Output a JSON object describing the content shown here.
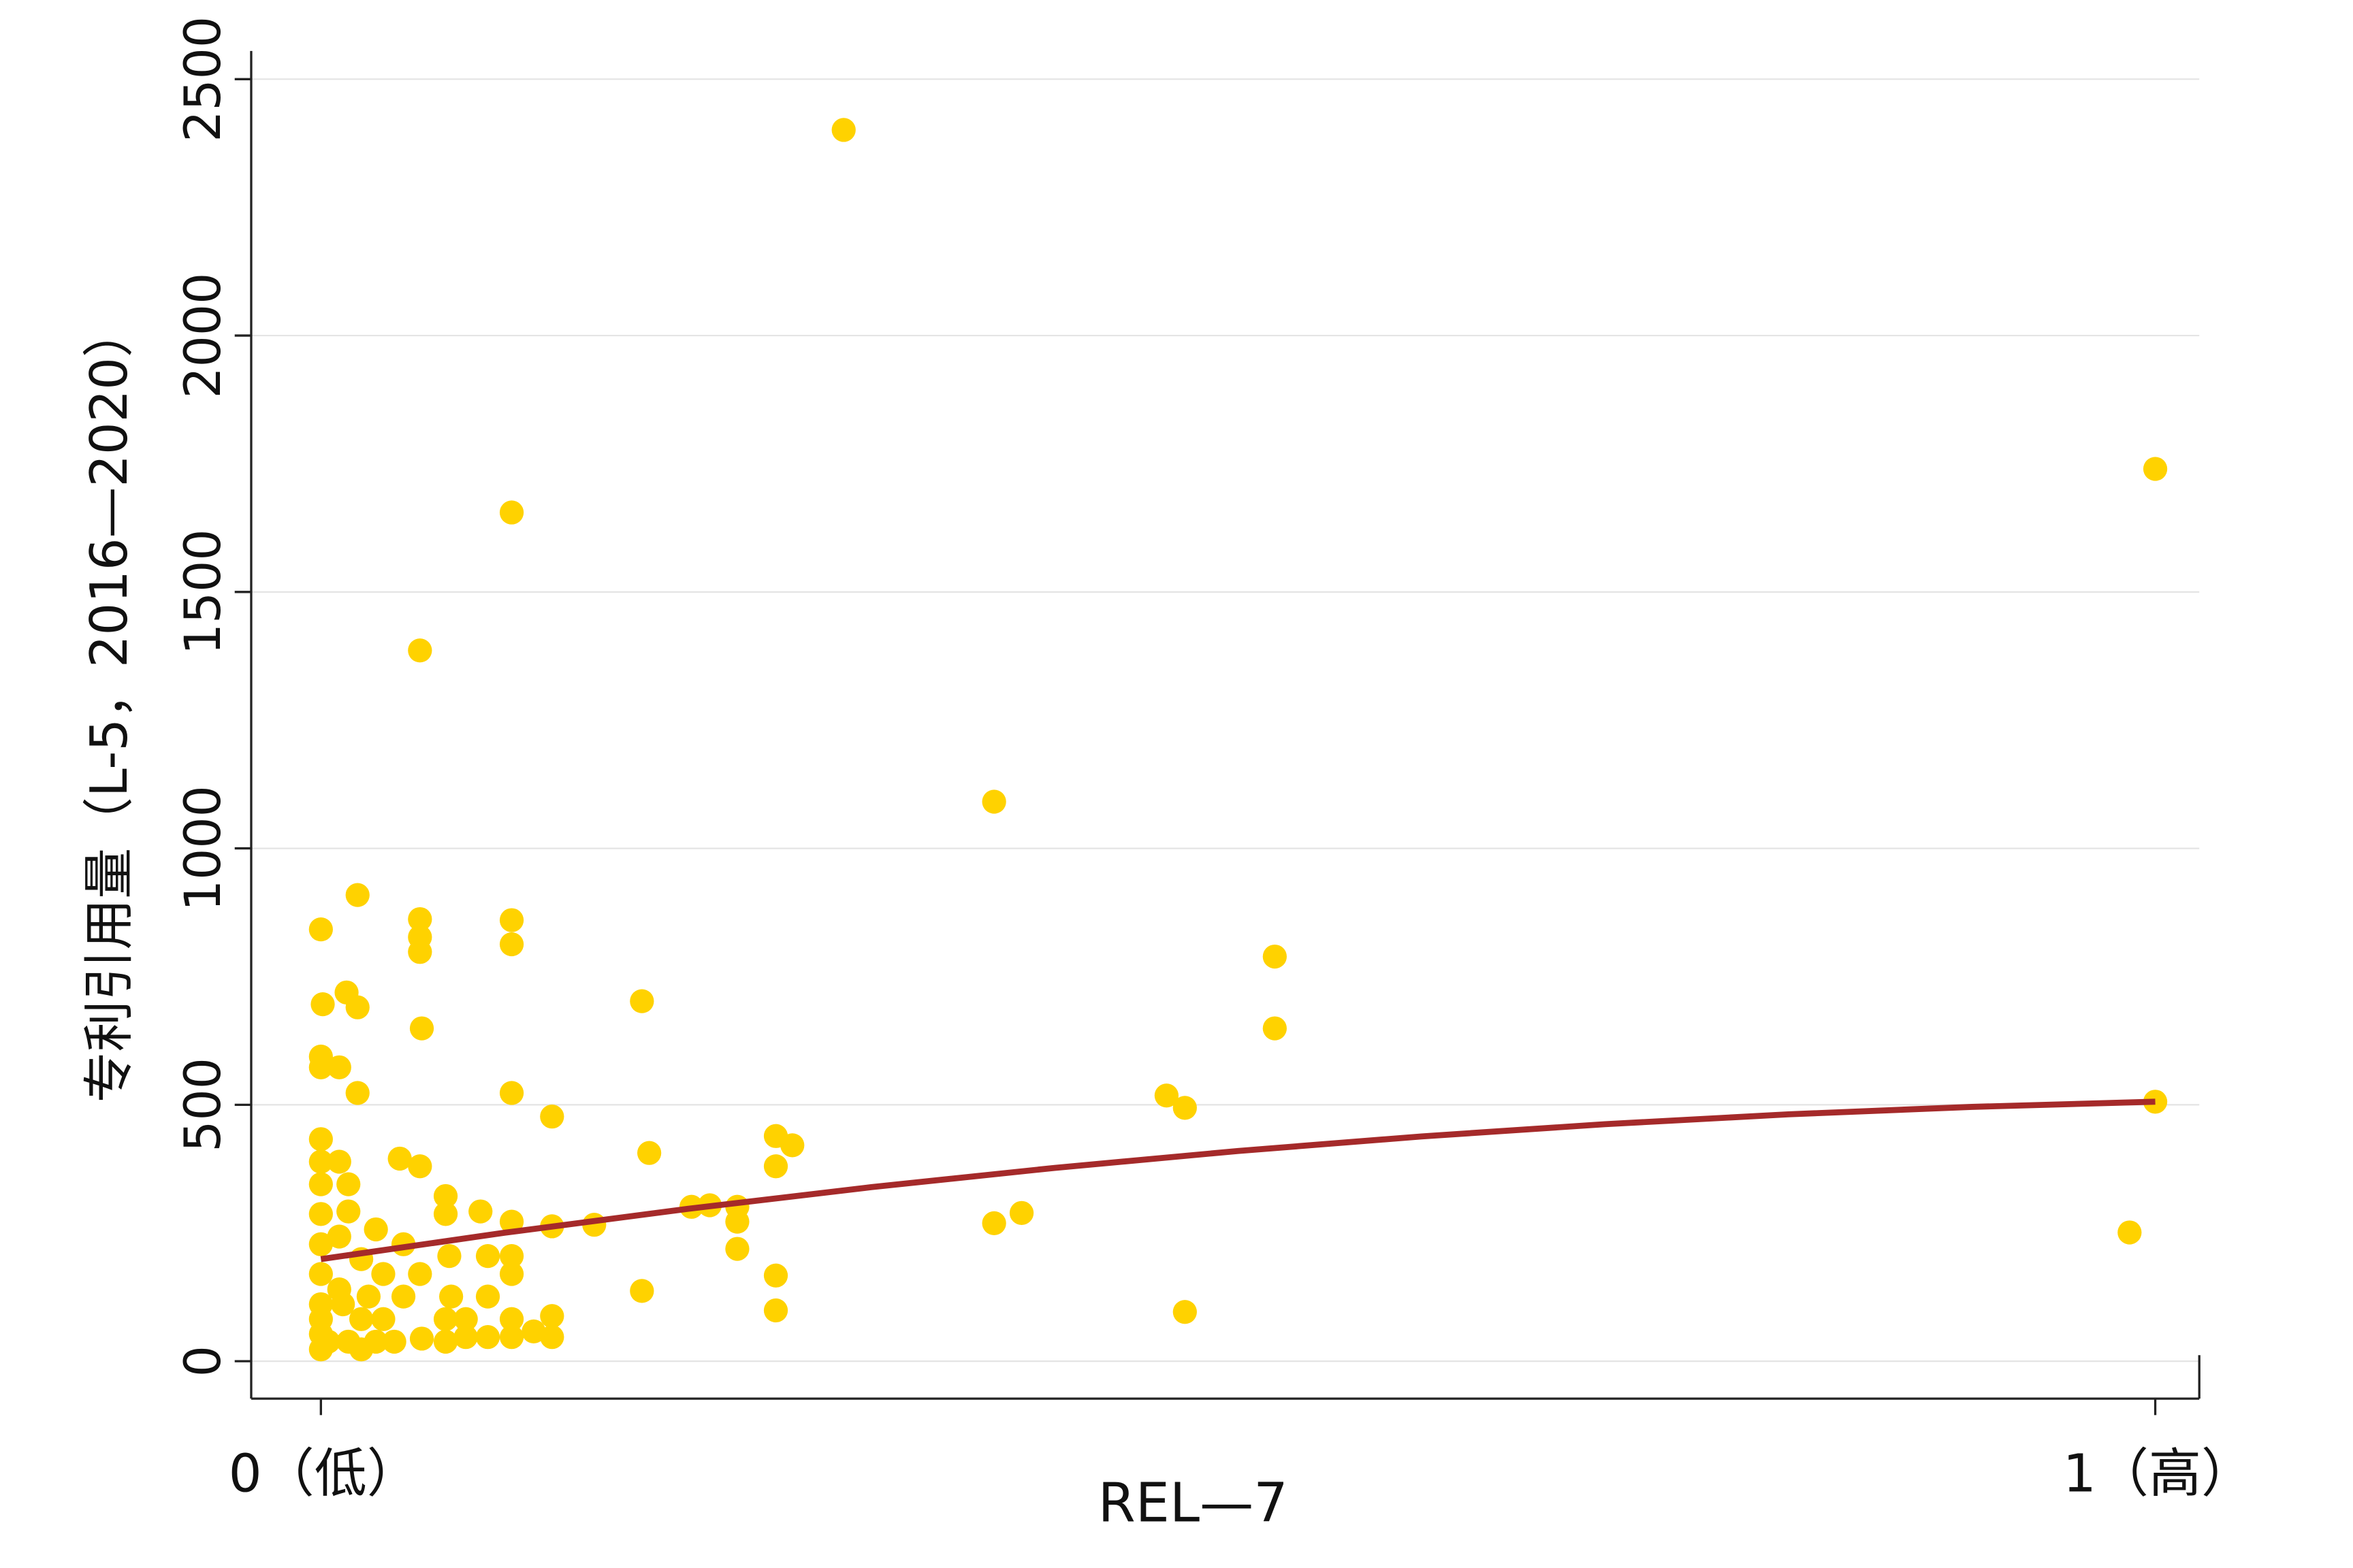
{
  "chart_data": {
    "type": "scatter",
    "xlabel": "REL—7",
    "ylabel": "专利引用量（L-5，2016—2020）",
    "xlim": [
      -0.038,
      1.024
    ],
    "ylim": [
      -73,
      2555
    ],
    "xticks": [
      {
        "value": 0,
        "label": "0（低）"
      },
      {
        "value": 1,
        "label": "1（高）"
      }
    ],
    "yticks": [
      0,
      500,
      1000,
      1500,
      2000,
      2500
    ],
    "grid": true,
    "series": [
      {
        "type": "scatter",
        "color": "#FFD200",
        "x": [
          0.285,
          1.0,
          0.104,
          0.054,
          0.367,
          0.02,
          0,
          0.054,
          0.054,
          0.054,
          0.104,
          0.104,
          0.52,
          0.52,
          0.175,
          0.001,
          0.014,
          0.02,
          0.055,
          0,
          0,
          0.01,
          0.02,
          0.104,
          0.126,
          0.461,
          0.471,
          0.248,
          0.257,
          0.248,
          0.179,
          1.0,
          0.986,
          0.367,
          0.382,
          0.227,
          0.227,
          0.227,
          0.202,
          0.212,
          0.248,
          0.248,
          0.471,
          0.175,
          0.149,
          0.126,
          0,
          0,
          0,
          0,
          0,
          0,
          0,
          0,
          0,
          0.01,
          0.015,
          0.015,
          0.01,
          0.022,
          0.01,
          0.022,
          0.015,
          0.043,
          0.054,
          0.068,
          0.068,
          0.045,
          0.054,
          0.045,
          0.068,
          0.068,
          0.03,
          0.034,
          0.03,
          0.087,
          0.091,
          0.091,
          0.104,
          0.104,
          0.104,
          0.104,
          0.104,
          0.079,
          0.079,
          0.091,
          0.116,
          0.126,
          0.126,
          0.07,
          0.071,
          0,
          0.004,
          0.022,
          0.04,
          0.055,
          0.012,
          0.026,
          0.034
        ],
        "values": [
          2401,
          1740,
          1655,
          1386,
          1091,
          909,
          842,
          862,
          827,
          798,
          860,
          813,
          789,
          649,
          702,
          696,
          719,
          690,
          649,
          594,
          573,
          573,
          523,
          523,
          477,
          518,
          494,
          439,
          421,
          380,
          406,
          506,
          251,
          269,
          289,
          301,
          272,
          219,
          301,
          304,
          167,
          99,
          96,
          137,
          266,
          263,
          433,
          389,
          345,
          287,
          228,
          170,
          111,
          53,
          23,
          389,
          345,
          292,
          243,
          199,
          140,
          82,
          38,
          395,
          380,
          322,
          287,
          228,
          170,
          126,
          82,
          38,
          257,
          170,
          38,
          292,
          205,
          126,
          205,
          272,
          170,
          82,
          47,
          82,
          47,
          47,
          58,
          88,
          47,
          205,
          126,
          82,
          38,
          23,
          38,
          44,
          111,
          126,
          82
        ]
      },
      {
        "type": "line",
        "color": "#A52A2A",
        "x": [
          0,
          0.1,
          0.2,
          0.3,
          0.4,
          0.5,
          0.6,
          0.7,
          0.8,
          0.9,
          1
        ],
        "values": [
          199,
          250.4,
          297.1,
          339.3,
          376.9,
          409.9,
          438.3,
          462.1,
          481.4,
          495.9,
          506
        ]
      }
    ]
  }
}
